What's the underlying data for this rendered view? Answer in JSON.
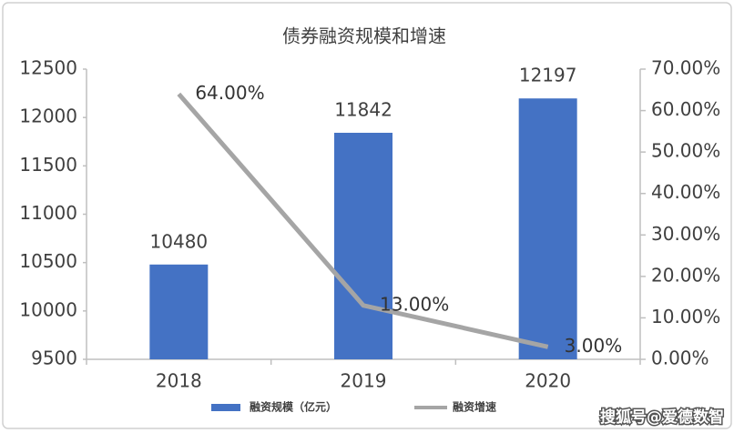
{
  "chart_data": {
    "type": "bar",
    "title": "债券融资规模和增速",
    "categories": [
      "2018",
      "2019",
      "2020"
    ],
    "series": [
      {
        "name": "融资规模（亿元）",
        "type": "bar",
        "color": "#4472c4",
        "values": [
          10480,
          11842,
          12197
        ]
      },
      {
        "name": "融资增速",
        "type": "line",
        "axis": "y2",
        "color": "#a5a5a5",
        "values": [
          64,
          13,
          3
        ],
        "value_labels": [
          "64.00%",
          "13.00%",
          "3.00%"
        ]
      }
    ],
    "ylim": [
      9500,
      12500
    ],
    "yticks": [
      9500,
      10000,
      10500,
      11000,
      11500,
      12000,
      12500
    ],
    "y2lim": [
      0,
      70
    ],
    "y2ticks": [
      {
        "value": 0,
        "label": "0.00%"
      },
      {
        "value": 10,
        "label": "10.00%"
      },
      {
        "value": 20,
        "label": "20.00%"
      },
      {
        "value": 30,
        "label": "30.00%"
      },
      {
        "value": 40,
        "label": "40.00%"
      },
      {
        "value": 50,
        "label": "50.00%"
      },
      {
        "value": 60,
        "label": "60.00%"
      },
      {
        "value": 70,
        "label": "70.00%"
      }
    ],
    "legend": "bottom",
    "grid": false,
    "watermark": "搜狐号@爱德数智"
  }
}
